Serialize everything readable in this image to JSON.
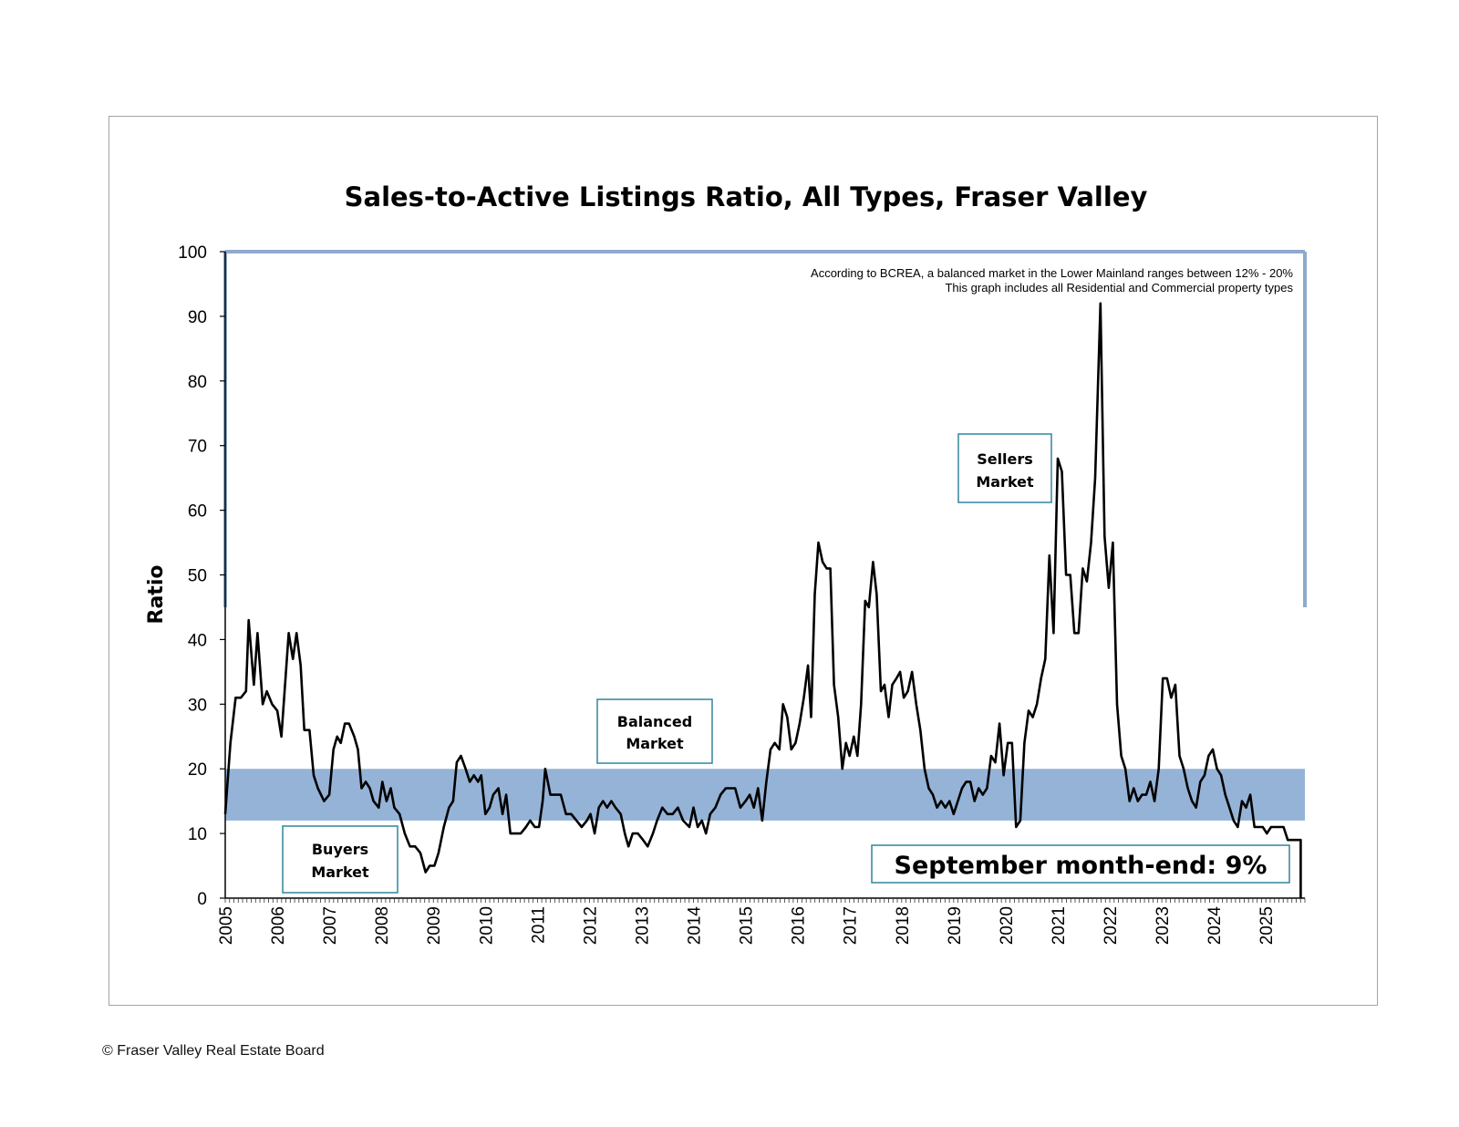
{
  "footer": "© Fraser Valley Real Estate Board",
  "chart_data": {
    "type": "line",
    "title": "Sales-to-Active Listings Ratio, All Types, Fraser Valley",
    "xlabel": "",
    "ylabel": "Ratio",
    "ylim": [
      0,
      100
    ],
    "yticks": [
      0,
      10,
      20,
      30,
      40,
      50,
      60,
      70,
      80,
      90,
      100
    ],
    "xticks": [
      "2005",
      "2006",
      "2007",
      "2008",
      "2009",
      "2010",
      "2011",
      "2012",
      "2013",
      "2014",
      "2015",
      "2016",
      "2017",
      "2018",
      "2019",
      "2020",
      "2021",
      "2022",
      "2023",
      "2024",
      "2025"
    ],
    "grid": false,
    "legend": "none",
    "x_unit": "year (fractional, monthly data)",
    "balanced_band": {
      "low": 12,
      "high": 20,
      "color": "#95b3d7"
    },
    "notes": [
      "According to BCREA, a balanced market in the Lower Mainland ranges between 12% - 20%",
      "This graph includes all Residential and Commercial property types"
    ],
    "annotations": {
      "sellers": [
        "Sellers",
        "Market"
      ],
      "balanced": [
        "Balanced",
        "Market"
      ],
      "buyers": [
        "Buyers",
        "Market"
      ],
      "callout": "September month-end: 9%"
    },
    "colors": {
      "line": "#000000",
      "band": "#95b3d7",
      "border": "#8eaacc",
      "box_border": "#31859c"
    },
    "series": [
      {
        "values": [
          [
            2005.0,
            13
          ],
          [
            2005.1,
            24
          ],
          [
            2005.2,
            31
          ],
          [
            2005.3,
            31
          ],
          [
            2005.4,
            32
          ],
          [
            2005.45,
            43
          ],
          [
            2005.55,
            33
          ],
          [
            2005.62,
            41
          ],
          [
            2005.72,
            30
          ],
          [
            2005.8,
            32
          ],
          [
            2005.9,
            30
          ],
          [
            2006.0,
            29
          ],
          [
            2006.08,
            25
          ],
          [
            2006.15,
            33
          ],
          [
            2006.22,
            41
          ],
          [
            2006.3,
            37
          ],
          [
            2006.37,
            41
          ],
          [
            2006.45,
            36
          ],
          [
            2006.52,
            26
          ],
          [
            2006.62,
            26
          ],
          [
            2006.7,
            19
          ],
          [
            2006.78,
            17
          ],
          [
            2006.9,
            15
          ],
          [
            2007.0,
            16
          ],
          [
            2007.08,
            23
          ],
          [
            2007.15,
            25
          ],
          [
            2007.22,
            24
          ],
          [
            2007.3,
            27
          ],
          [
            2007.38,
            27
          ],
          [
            2007.48,
            25
          ],
          [
            2007.55,
            23
          ],
          [
            2007.62,
            17
          ],
          [
            2007.7,
            18
          ],
          [
            2007.78,
            17
          ],
          [
            2007.85,
            15
          ],
          [
            2007.95,
            14
          ],
          [
            2008.02,
            18
          ],
          [
            2008.1,
            15
          ],
          [
            2008.18,
            17
          ],
          [
            2008.25,
            14
          ],
          [
            2008.35,
            13
          ],
          [
            2008.45,
            10
          ],
          [
            2008.55,
            8
          ],
          [
            2008.65,
            8
          ],
          [
            2008.75,
            7
          ],
          [
            2008.85,
            4
          ],
          [
            2008.93,
            5
          ],
          [
            2009.02,
            5
          ],
          [
            2009.1,
            7
          ],
          [
            2009.2,
            11
          ],
          [
            2009.3,
            14
          ],
          [
            2009.38,
            15
          ],
          [
            2009.45,
            21
          ],
          [
            2009.53,
            22
          ],
          [
            2009.62,
            20
          ],
          [
            2009.7,
            18
          ],
          [
            2009.78,
            19
          ],
          [
            2009.86,
            18
          ],
          [
            2009.92,
            19
          ],
          [
            2010.0,
            13
          ],
          [
            2010.08,
            14
          ],
          [
            2010.15,
            16
          ],
          [
            2010.25,
            17
          ],
          [
            2010.33,
            13
          ],
          [
            2010.4,
            16
          ],
          [
            2010.48,
            10
          ],
          [
            2010.58,
            10
          ],
          [
            2010.68,
            10
          ],
          [
            2010.78,
            11
          ],
          [
            2010.86,
            12
          ],
          [
            2010.95,
            11
          ],
          [
            2011.03,
            11
          ],
          [
            2011.1,
            15
          ],
          [
            2011.15,
            20
          ],
          [
            2011.25,
            16
          ],
          [
            2011.35,
            16
          ],
          [
            2011.45,
            16
          ],
          [
            2011.55,
            13
          ],
          [
            2011.65,
            13
          ],
          [
            2011.75,
            12
          ],
          [
            2011.85,
            11
          ],
          [
            2011.95,
            12
          ],
          [
            2012.02,
            13
          ],
          [
            2012.1,
            10
          ],
          [
            2012.18,
            14
          ],
          [
            2012.26,
            15
          ],
          [
            2012.34,
            14
          ],
          [
            2012.42,
            15
          ],
          [
            2012.5,
            14
          ],
          [
            2012.6,
            13
          ],
          [
            2012.68,
            10
          ],
          [
            2012.75,
            8
          ],
          [
            2012.83,
            10
          ],
          [
            2012.93,
            10
          ],
          [
            2013.03,
            9
          ],
          [
            2013.12,
            8
          ],
          [
            2013.22,
            10
          ],
          [
            2013.3,
            12
          ],
          [
            2013.4,
            14
          ],
          [
            2013.5,
            13
          ],
          [
            2013.6,
            13
          ],
          [
            2013.7,
            14
          ],
          [
            2013.8,
            12
          ],
          [
            2013.92,
            11
          ],
          [
            2014.0,
            14
          ],
          [
            2014.08,
            11
          ],
          [
            2014.16,
            12
          ],
          [
            2014.24,
            10
          ],
          [
            2014.32,
            13
          ],
          [
            2014.42,
            14
          ],
          [
            2014.52,
            16
          ],
          [
            2014.62,
            17
          ],
          [
            2014.72,
            17
          ],
          [
            2014.8,
            17
          ],
          [
            2014.9,
            14
          ],
          [
            2015.0,
            15
          ],
          [
            2015.08,
            16
          ],
          [
            2015.16,
            14
          ],
          [
            2015.24,
            17
          ],
          [
            2015.32,
            12
          ],
          [
            2015.4,
            18
          ],
          [
            2015.48,
            23
          ],
          [
            2015.56,
            24
          ],
          [
            2015.65,
            23
          ],
          [
            2015.72,
            30
          ],
          [
            2015.8,
            28
          ],
          [
            2015.88,
            23
          ],
          [
            2015.96,
            24
          ],
          [
            2016.04,
            27
          ],
          [
            2016.12,
            31
          ],
          [
            2016.2,
            36
          ],
          [
            2016.26,
            28
          ],
          [
            2016.33,
            47
          ],
          [
            2016.4,
            55
          ],
          [
            2016.48,
            52
          ],
          [
            2016.56,
            51
          ],
          [
            2016.63,
            51
          ],
          [
            2016.7,
            33
          ],
          [
            2016.78,
            28
          ],
          [
            2016.86,
            20
          ],
          [
            2016.93,
            24
          ],
          [
            2017.0,
            22
          ],
          [
            2017.08,
            25
          ],
          [
            2017.15,
            22
          ],
          [
            2017.22,
            30
          ],
          [
            2017.3,
            46
          ],
          [
            2017.37,
            45
          ],
          [
            2017.45,
            52
          ],
          [
            2017.52,
            47
          ],
          [
            2017.6,
            32
          ],
          [
            2017.67,
            33
          ],
          [
            2017.75,
            28
          ],
          [
            2017.82,
            33
          ],
          [
            2017.9,
            34
          ],
          [
            2017.97,
            35
          ],
          [
            2018.04,
            31
          ],
          [
            2018.12,
            32
          ],
          [
            2018.2,
            35
          ],
          [
            2018.28,
            30
          ],
          [
            2018.36,
            26
          ],
          [
            2018.44,
            20
          ],
          [
            2018.52,
            17
          ],
          [
            2018.6,
            16
          ],
          [
            2018.68,
            14
          ],
          [
            2018.76,
            15
          ],
          [
            2018.84,
            14
          ],
          [
            2018.92,
            15
          ],
          [
            2019.0,
            13
          ],
          [
            2019.08,
            15
          ],
          [
            2019.16,
            17
          ],
          [
            2019.24,
            18
          ],
          [
            2019.32,
            18
          ],
          [
            2019.4,
            15
          ],
          [
            2019.48,
            17
          ],
          [
            2019.56,
            16
          ],
          [
            2019.64,
            17
          ],
          [
            2019.72,
            22
          ],
          [
            2019.8,
            21
          ],
          [
            2019.88,
            27
          ],
          [
            2019.96,
            19
          ],
          [
            2020.04,
            24
          ],
          [
            2020.12,
            24
          ],
          [
            2020.2,
            11
          ],
          [
            2020.28,
            12
          ],
          [
            2020.36,
            24
          ],
          [
            2020.44,
            29
          ],
          [
            2020.52,
            28
          ],
          [
            2020.6,
            30
          ],
          [
            2020.68,
            34
          ],
          [
            2020.76,
            37
          ],
          [
            2020.84,
            53
          ],
          [
            2020.92,
            41
          ],
          [
            2021.0,
            68
          ],
          [
            2021.08,
            66
          ],
          [
            2021.16,
            50
          ],
          [
            2021.24,
            50
          ],
          [
            2021.32,
            41
          ],
          [
            2021.4,
            41
          ],
          [
            2021.48,
            51
          ],
          [
            2021.56,
            49
          ],
          [
            2021.64,
            55
          ],
          [
            2021.72,
            65
          ],
          [
            2021.82,
            92
          ],
          [
            2021.9,
            56
          ],
          [
            2021.98,
            48
          ],
          [
            2022.06,
            55
          ],
          [
            2022.14,
            30
          ],
          [
            2022.22,
            22
          ],
          [
            2022.3,
            20
          ],
          [
            2022.38,
            15
          ],
          [
            2022.46,
            17
          ],
          [
            2022.54,
            15
          ],
          [
            2022.62,
            16
          ],
          [
            2022.7,
            16
          ],
          [
            2022.78,
            18
          ],
          [
            2022.86,
            15
          ],
          [
            2022.94,
            20
          ],
          [
            2023.02,
            34
          ],
          [
            2023.1,
            34
          ],
          [
            2023.18,
            31
          ],
          [
            2023.26,
            33
          ],
          [
            2023.34,
            22
          ],
          [
            2023.42,
            20
          ],
          [
            2023.5,
            17
          ],
          [
            2023.58,
            15
          ],
          [
            2023.66,
            14
          ],
          [
            2023.74,
            18
          ],
          [
            2023.82,
            19
          ],
          [
            2023.9,
            22
          ],
          [
            2023.98,
            23
          ],
          [
            2024.06,
            20
          ],
          [
            2024.14,
            19
          ],
          [
            2024.22,
            16
          ],
          [
            2024.3,
            14
          ],
          [
            2024.38,
            12
          ],
          [
            2024.46,
            11
          ],
          [
            2024.54,
            15
          ],
          [
            2024.62,
            14
          ],
          [
            2024.7,
            16
          ],
          [
            2024.78,
            11
          ],
          [
            2024.86,
            11
          ],
          [
            2024.94,
            11
          ],
          [
            2025.02,
            10
          ],
          [
            2025.1,
            11
          ],
          [
            2025.18,
            11
          ],
          [
            2025.26,
            11
          ],
          [
            2025.34,
            11
          ],
          [
            2025.42,
            9
          ],
          [
            2025.55,
            9
          ],
          [
            2025.67,
            9
          ]
        ]
      }
    ]
  }
}
